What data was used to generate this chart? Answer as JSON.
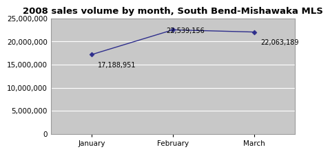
{
  "title": "2008 sales volume by month, South Bend-Mishawaka MLS",
  "months": [
    "January",
    "February",
    "March"
  ],
  "values": [
    17188951,
    22539156,
    22063189
  ],
  "labels": [
    "17,188,951",
    "22,539,156",
    "22,063,189"
  ],
  "ylim": [
    0,
    25000000
  ],
  "yticks": [
    0,
    5000000,
    10000000,
    15000000,
    20000000,
    25000000
  ],
  "ytick_labels": [
    "0",
    "5,000,000",
    "10,000,000",
    "15,000,000",
    "20,000,000",
    "25,000,000"
  ],
  "line_color": "#2e2e8c",
  "marker_color": "#2e2e8c",
  "fig_bg_color": "#ffffff",
  "plot_bg_color": "#c8c8c8",
  "title_fontsize": 9.5,
  "label_fontsize": 7,
  "tick_fontsize": 7.5,
  "grid_color": "#b0b0b0",
  "label_offsets": [
    [
      0.08,
      -1600000,
      "left"
    ],
    [
      -0.08,
      500000,
      "left"
    ],
    [
      0.08,
      -1600000,
      "left"
    ]
  ]
}
